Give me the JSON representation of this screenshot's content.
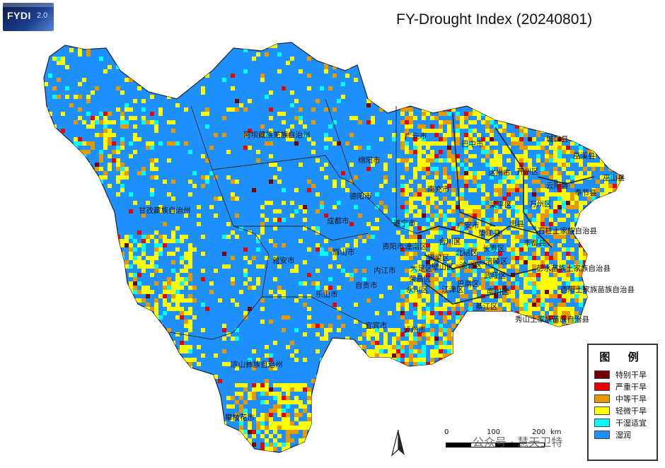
{
  "title": "FY-Drought Index (20240801)",
  "logo": {
    "brand": "FYDI",
    "version": "2.0"
  },
  "legend": {
    "heading": "图 例",
    "items": [
      {
        "label": "特别干旱",
        "color": "#730000"
      },
      {
        "label": "严重干旱",
        "color": "#e60000"
      },
      {
        "label": "中等干旱",
        "color": "#e69800"
      },
      {
        "label": "轻微干旱",
        "color": "#ffff00"
      },
      {
        "label": "干湿适宜",
        "color": "#00ffff"
      },
      {
        "label": "湿润",
        "color": "#1e90ff"
      }
    ]
  },
  "scale_bar": {
    "ticks": [
      "0",
      "100",
      "200"
    ],
    "unit": "km"
  },
  "watermark": "公众号 · 慧天卫特",
  "regions": [
    "阿坝藏族羌族自治州",
    "甘孜藏族自治州",
    "凉山彝族自治州",
    "攀枝花市",
    "雅安市",
    "乐山市",
    "眉山市",
    "成都市",
    "德阳市",
    "绵阳市",
    "广元市",
    "巴中市",
    "达州市",
    "南充市",
    "遂宁市",
    "广安市",
    "资阳市",
    "内江市",
    "自贡市",
    "宜宾市",
    "泸州市",
    "城口县",
    "巫溪县",
    "巫山县",
    "云阳县",
    "奉节县",
    "开州区",
    "万州区",
    "梁平区",
    "忠县",
    "垫江县",
    "石柱土家族自治县",
    "彭水苗族土家族自治县",
    "酉阳土家族苗族自治县",
    "秀山土家族苗族自治县",
    "武隆区",
    "南川区",
    "綦江区",
    "江津区",
    "永川区",
    "潼南区",
    "合川区",
    "长寿区",
    "涪陵区",
    "丰都县",
    "巴南区",
    "大足区",
    "壁山区",
    "北碚区",
    "渝北区",
    "荣昌区",
    "铜梁区"
  ]
}
